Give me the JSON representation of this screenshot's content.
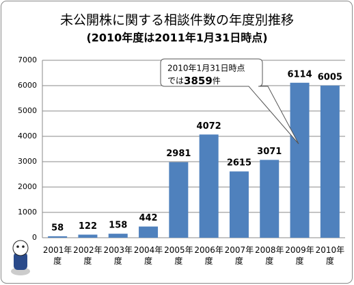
{
  "chart_data": {
    "type": "bar",
    "title": "未公開株に関する相談件数の年度別推移",
    "subtitle": "(2010年度は2011年1月31日時点)",
    "categories": [
      "2001年度",
      "2002年度",
      "2003年度",
      "2004年度",
      "2005年度",
      "2006年度",
      "2007年度",
      "2008年度",
      "2009年度",
      "2010年度"
    ],
    "values": [
      58,
      122,
      158,
      442,
      2981,
      4072,
      2615,
      3071,
      6114,
      6005
    ],
    "color": "#4f81bd",
    "ylim": [
      0,
      7000
    ],
    "yticks": [
      0,
      1000,
      2000,
      3000,
      4000,
      5000,
      6000,
      7000
    ],
    "grid": true,
    "annotation": {
      "line1": "2010年1月31日時点",
      "prefix": "では",
      "value": 3859,
      "suffix": "件"
    }
  }
}
